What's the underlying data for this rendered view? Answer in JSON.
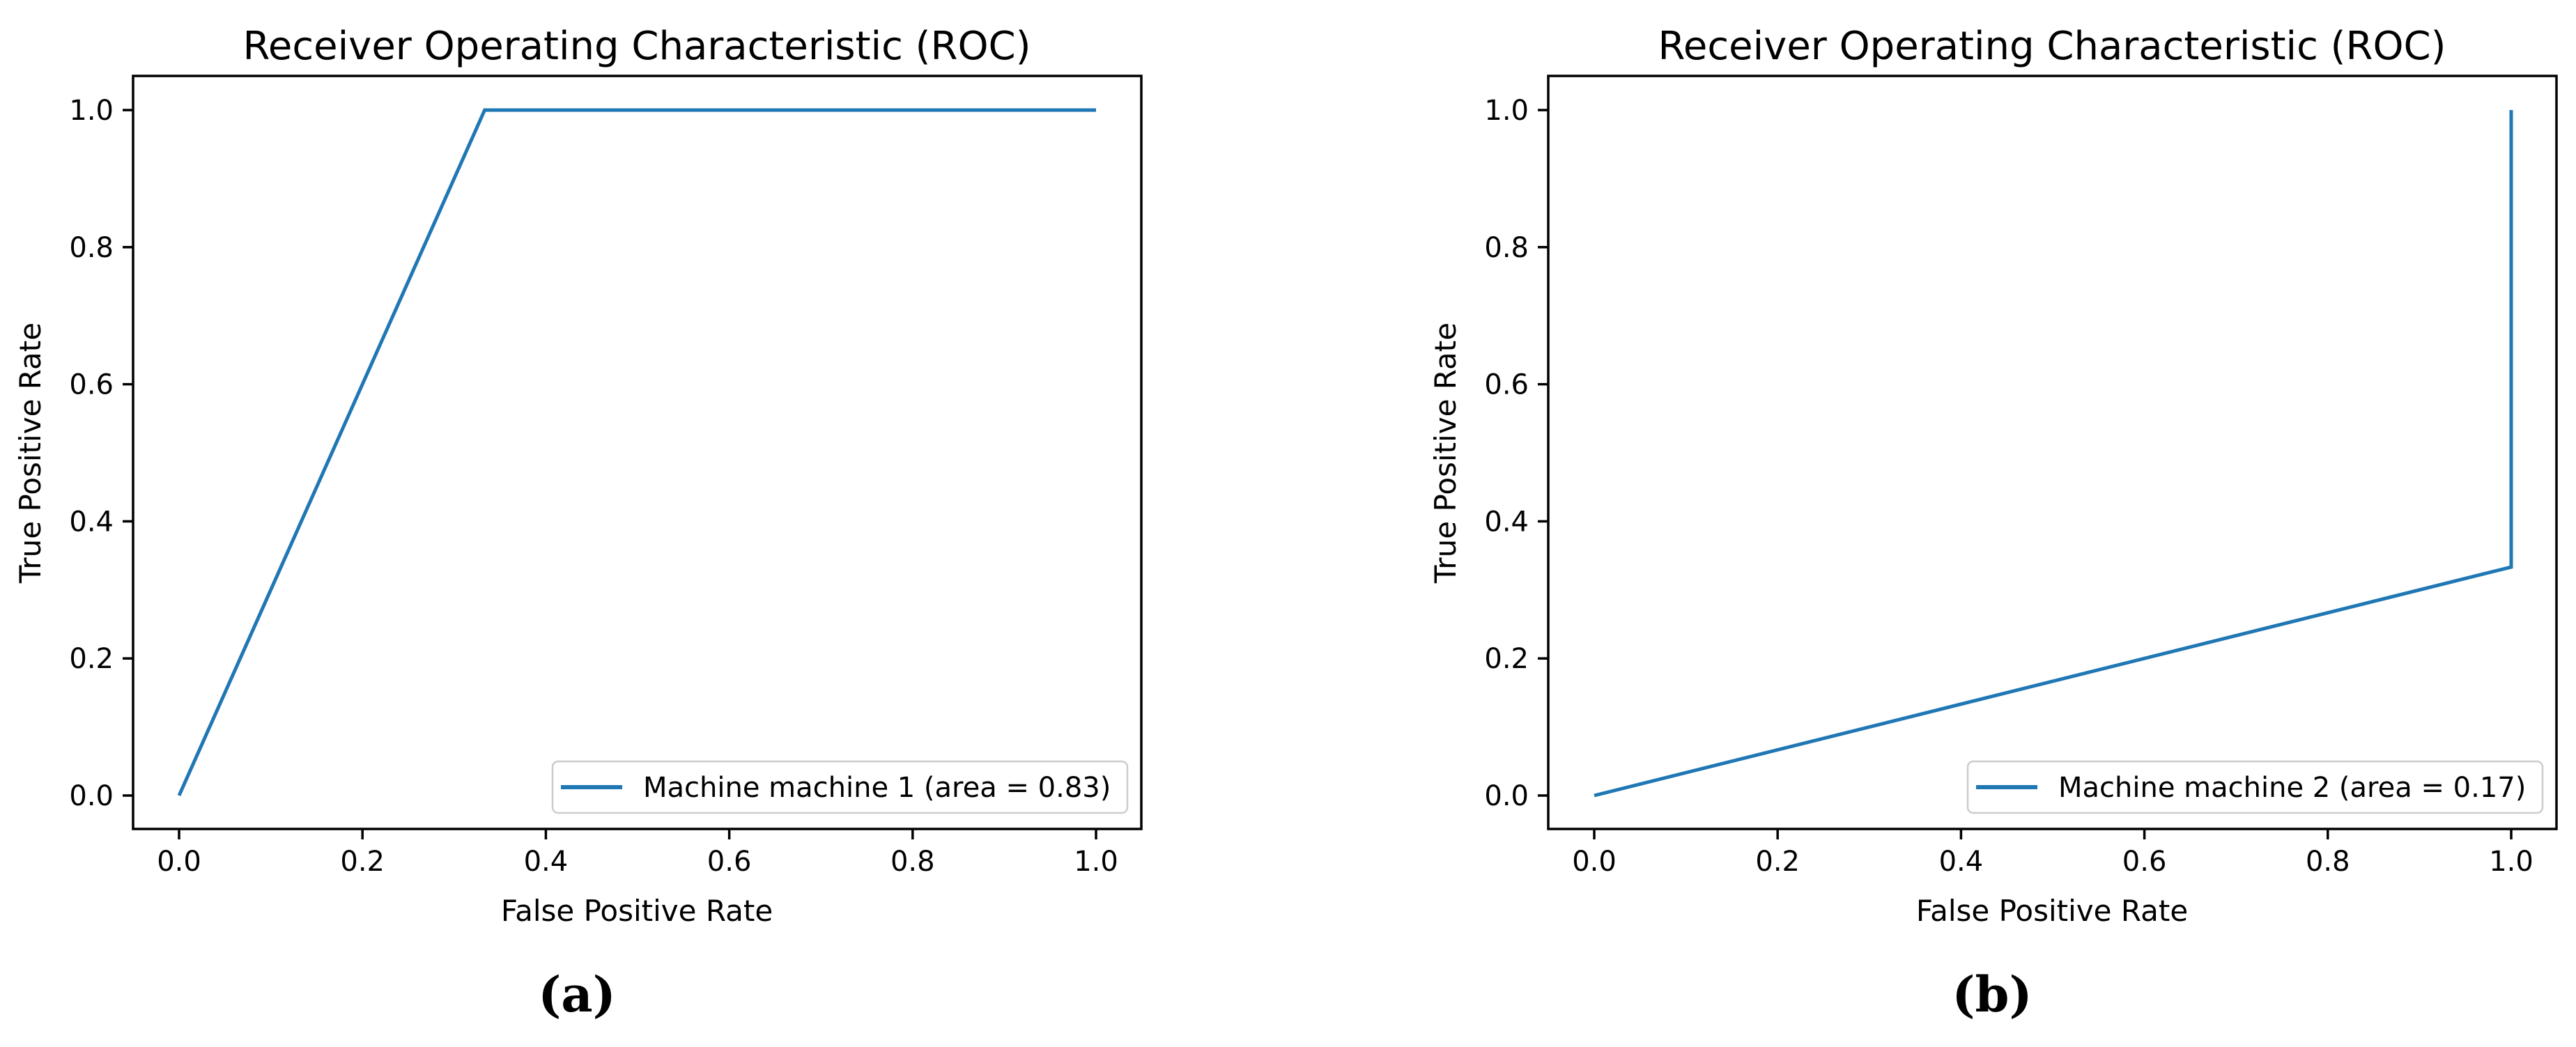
{
  "page": {
    "background": "#ffffff"
  },
  "colors": {
    "roc_line": "#1f77b4",
    "axis": "#000000",
    "legend_border": "#cccccc",
    "text": "#000000"
  },
  "chart_data": [
    {
      "type": "line",
      "title": "Receiver Operating Characteristic (ROC)",
      "xlabel": "False Positive Rate",
      "ylabel": "True Positive Rate",
      "xlim": [
        -0.05,
        1.05
      ],
      "ylim": [
        -0.05,
        1.05
      ],
      "xticks": [
        "0.0",
        "0.2",
        "0.4",
        "0.6",
        "0.8",
        "1.0"
      ],
      "yticks": [
        "0.0",
        "0.2",
        "0.4",
        "0.6",
        "0.8",
        "1.0"
      ],
      "grid": false,
      "legend_position": "lower right",
      "series": [
        {
          "name": "Machine machine 1 (area = 0.83)",
          "color": "#1f77b4",
          "x": [
            0.0,
            0.3333,
            1.0
          ],
          "y": [
            0.0,
            1.0,
            1.0
          ],
          "auc": 0.83
        }
      ],
      "caption": "(a)"
    },
    {
      "type": "line",
      "title": "Receiver Operating Characteristic (ROC)",
      "xlabel": "False Positive Rate",
      "ylabel": "True Positive Rate",
      "xlim": [
        -0.05,
        1.05
      ],
      "ylim": [
        -0.05,
        1.05
      ],
      "xticks": [
        "0.0",
        "0.2",
        "0.4",
        "0.6",
        "0.8",
        "1.0"
      ],
      "yticks": [
        "0.0",
        "0.2",
        "0.4",
        "0.6",
        "0.8",
        "1.0"
      ],
      "grid": false,
      "legend_position": "lower right",
      "series": [
        {
          "name": "Machine machine 2 (area = 0.17)",
          "color": "#1f77b4",
          "x": [
            0.0,
            1.0,
            1.0
          ],
          "y": [
            0.0,
            0.3333,
            1.0
          ],
          "auc": 0.17
        }
      ],
      "caption": "(b)"
    }
  ]
}
